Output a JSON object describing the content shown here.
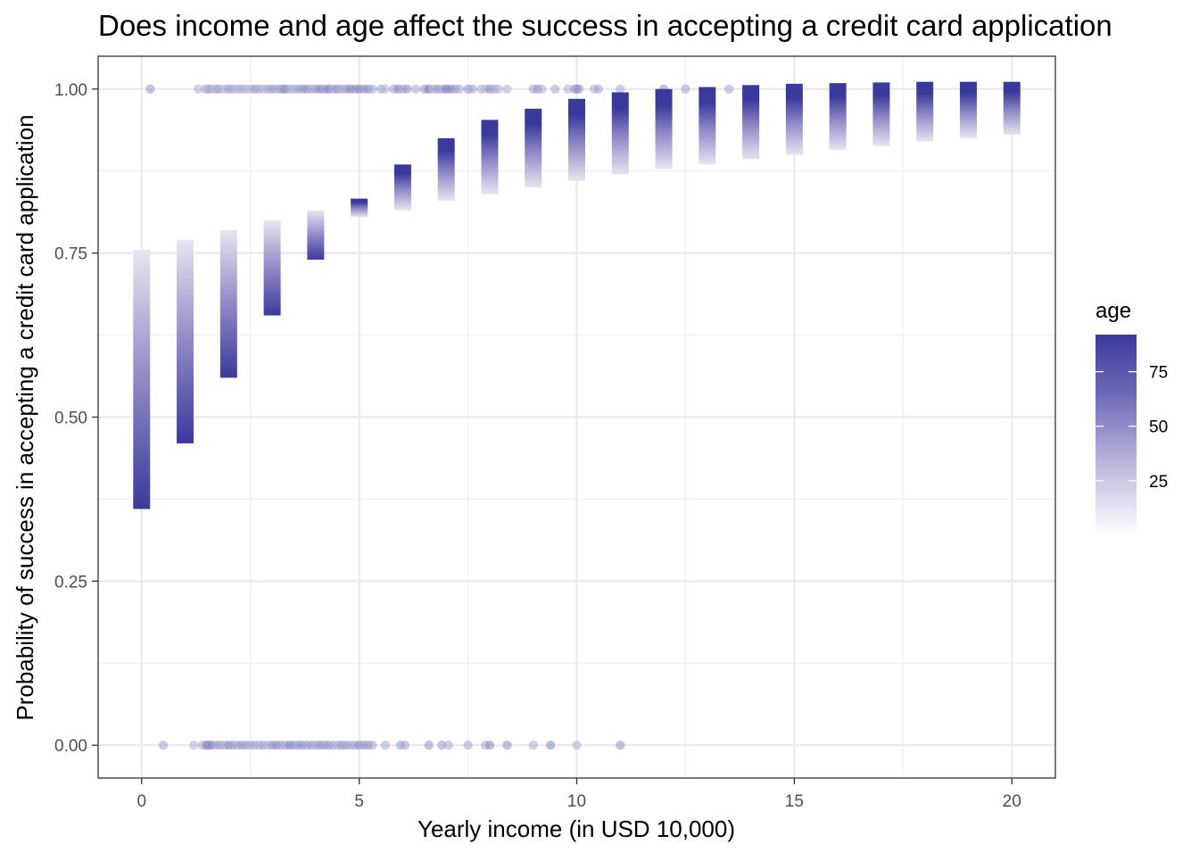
{
  "chart_data": {
    "type": "scatter",
    "title": "Does income and age affect the success in accepting a credit card application",
    "xlabel": "Yearly income (in USD 10,000)",
    "ylabel": "Probability of success in accepting a credit card application",
    "xlim": [
      -1,
      21
    ],
    "ylim": [
      -0.05,
      1.05
    ],
    "x_ticks": [
      0,
      5,
      10,
      15,
      20
    ],
    "x_tick_labels": [
      "0",
      "5",
      "10",
      "15",
      "20"
    ],
    "y_ticks": [
      0,
      0.25,
      0.5,
      0.75,
      1.0
    ],
    "y_tick_labels": [
      "0.00",
      "0.25",
      "0.50",
      "0.75",
      "1.00"
    ],
    "grid": true,
    "legend": {
      "title": "age",
      "position": "right",
      "range": [
        0,
        92
      ],
      "ticks": [
        25,
        50,
        75
      ],
      "tick_labels": [
        "25",
        "50",
        "75"
      ],
      "color_low": "#ffffff",
      "color_high": "#3a3a9c"
    },
    "predicted_probability_bars": [
      {
        "income": 0,
        "p_low": 0.36,
        "p_high": 0.755,
        "dark_end": "low"
      },
      {
        "income": 1,
        "p_low": 0.46,
        "p_high": 0.77,
        "dark_end": "low"
      },
      {
        "income": 2,
        "p_low": 0.56,
        "p_high": 0.785,
        "dark_end": "low"
      },
      {
        "income": 3,
        "p_low": 0.655,
        "p_high": 0.8,
        "dark_end": "low"
      },
      {
        "income": 4,
        "p_low": 0.74,
        "p_high": 0.815,
        "dark_end": "low"
      },
      {
        "income": 5,
        "p_low": 0.805,
        "p_high": 0.833,
        "dark_end": "high"
      },
      {
        "income": 6,
        "p_low": 0.815,
        "p_high": 0.885,
        "dark_end": "high"
      },
      {
        "income": 7,
        "p_low": 0.83,
        "p_high": 0.925,
        "dark_end": "high"
      },
      {
        "income": 8,
        "p_low": 0.84,
        "p_high": 0.953,
        "dark_end": "high"
      },
      {
        "income": 9,
        "p_low": 0.85,
        "p_high": 0.97,
        "dark_end": "high"
      },
      {
        "income": 10,
        "p_low": 0.86,
        "p_high": 0.985,
        "dark_end": "high"
      },
      {
        "income": 11,
        "p_low": 0.87,
        "p_high": 0.995,
        "dark_end": "high"
      },
      {
        "income": 12,
        "p_low": 0.878,
        "p_high": 1.0,
        "dark_end": "high"
      },
      {
        "income": 13,
        "p_low": 0.885,
        "p_high": 1.003,
        "dark_end": "high"
      },
      {
        "income": 14,
        "p_low": 0.893,
        "p_high": 1.006,
        "dark_end": "high"
      },
      {
        "income": 15,
        "p_low": 0.9,
        "p_high": 1.008,
        "dark_end": "high"
      },
      {
        "income": 16,
        "p_low": 0.907,
        "p_high": 1.009,
        "dark_end": "high"
      },
      {
        "income": 17,
        "p_low": 0.913,
        "p_high": 1.01,
        "dark_end": "high"
      },
      {
        "income": 18,
        "p_low": 0.92,
        "p_high": 1.011,
        "dark_end": "high"
      },
      {
        "income": 19,
        "p_low": 0.925,
        "p_high": 1.011,
        "dark_end": "high"
      },
      {
        "income": 20,
        "p_low": 0.93,
        "p_high": 1.011,
        "dark_end": "high"
      }
    ],
    "observed_accepted": {
      "y": 1,
      "x": [
        0.2,
        1.3,
        1.45,
        1.5,
        1.55,
        1.6,
        1.7,
        1.75,
        1.8,
        1.9,
        2.0,
        2.1,
        2.2,
        2.3,
        2.4,
        2.5,
        2.6,
        2.7,
        2.8,
        2.9,
        3.0,
        3.1,
        3.2,
        3.25,
        3.3,
        3.4,
        3.5,
        3.6,
        3.7,
        3.8,
        3.9,
        4.0,
        4.1,
        4.2,
        4.3,
        4.4,
        4.5,
        4.6,
        4.7,
        4.8,
        4.9,
        5.0,
        5.1,
        5.2,
        5.3,
        5.5,
        5.6,
        5.8,
        5.9,
        6.0,
        6.1,
        6.3,
        6.5,
        6.6,
        6.7,
        6.8,
        6.9,
        7.0,
        7.1,
        7.2,
        7.3,
        7.5,
        7.6,
        7.8,
        7.9,
        8.0,
        8.1,
        8.2,
        8.4,
        9.0,
        9.1,
        9.2,
        9.5,
        9.8,
        9.95,
        10.0,
        10.05,
        10.4,
        10.5,
        11.0,
        12.0,
        12.5,
        13.5
      ],
      "age": [
        35,
        20,
        15,
        18,
        22,
        25,
        15,
        30,
        20,
        18,
        35,
        28,
        22,
        30,
        25,
        20,
        35,
        28,
        22,
        30,
        40,
        28,
        35,
        25,
        45,
        30,
        25,
        35,
        40,
        45,
        30,
        35,
        50,
        40,
        55,
        30,
        45,
        25,
        38,
        50,
        42,
        48,
        38,
        45,
        30,
        28,
        20,
        32,
        45,
        28,
        40,
        25,
        35,
        55,
        22,
        40,
        30,
        60,
        50,
        38,
        28,
        40,
        30,
        25,
        20,
        45,
        30,
        22,
        20,
        30,
        40,
        22,
        25,
        20,
        38,
        28,
        40,
        22,
        28,
        25,
        35,
        30,
        25
      ]
    },
    "observed_rejected": {
      "y": 0,
      "x": [
        0.5,
        1.2,
        1.4,
        1.5,
        1.55,
        1.6,
        1.7,
        1.8,
        1.9,
        2.0,
        2.1,
        2.2,
        2.3,
        2.4,
        2.5,
        2.6,
        2.7,
        2.8,
        2.9,
        3.0,
        3.1,
        3.2,
        3.3,
        3.4,
        3.5,
        3.6,
        3.7,
        3.8,
        3.9,
        4.0,
        4.1,
        4.2,
        4.3,
        4.4,
        4.5,
        4.6,
        4.7,
        4.8,
        4.9,
        5.0,
        5.1,
        5.2,
        5.3,
        5.6,
        5.95,
        6.05,
        6.6,
        6.9,
        7.05,
        7.5,
        7.9,
        8.0,
        8.4,
        9.0,
        9.4,
        10.0,
        11.0
      ],
      "age": [
        30,
        20,
        25,
        55,
        40,
        45,
        30,
        40,
        25,
        45,
        35,
        30,
        40,
        35,
        28,
        30,
        25,
        35,
        20,
        40,
        45,
        35,
        30,
        50,
        40,
        35,
        45,
        30,
        40,
        28,
        45,
        35,
        40,
        30,
        25,
        40,
        35,
        30,
        28,
        45,
        35,
        40,
        30,
        25,
        35,
        30,
        40,
        35,
        25,
        30,
        25,
        45,
        40,
        25,
        45,
        20,
        40
      ]
    }
  }
}
